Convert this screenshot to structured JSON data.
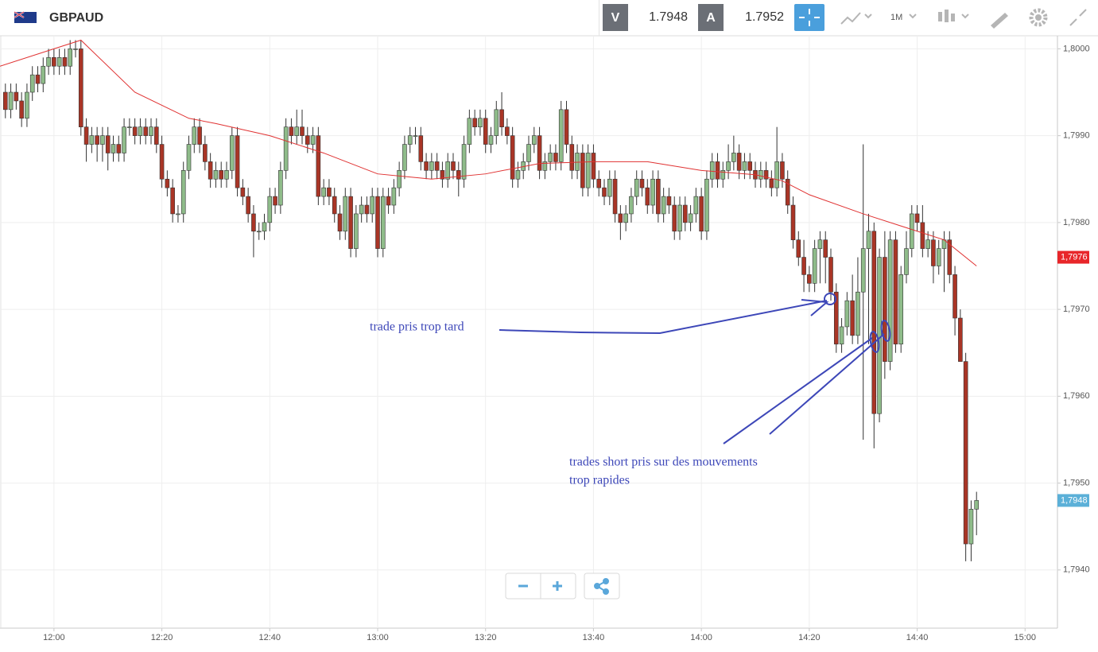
{
  "header": {
    "symbol": "GBPAUD",
    "bid_label": "V",
    "bid": "1.7948",
    "ask_label": "A",
    "ask": "1.7952",
    "timeframe": "1M"
  },
  "chart_data": {
    "type": "candlestick",
    "x": [
      "11:51",
      "11:52",
      "11:53",
      "11:54",
      "11:55",
      "11:56",
      "11:57",
      "11:58",
      "11:59",
      "12:00",
      "12:01",
      "12:02",
      "12:03",
      "12:04",
      "12:05",
      "12:06",
      "12:07",
      "12:08",
      "12:09",
      "12:10",
      "12:11",
      "12:12",
      "12:13",
      "12:14",
      "12:15",
      "12:16",
      "12:17",
      "12:18",
      "12:19",
      "12:20",
      "12:21",
      "12:22",
      "12:23",
      "12:24",
      "12:25",
      "12:26",
      "12:27",
      "12:28",
      "12:29",
      "12:30",
      "12:31",
      "12:32",
      "12:33",
      "12:34",
      "12:35",
      "12:36",
      "12:37",
      "12:38",
      "12:39",
      "12:40",
      "12:41",
      "12:42",
      "12:43",
      "12:44",
      "12:45",
      "12:46",
      "12:47",
      "12:48",
      "12:49",
      "12:50",
      "12:51",
      "12:52",
      "12:53",
      "12:54",
      "12:55",
      "12:56",
      "12:57",
      "12:58",
      "12:59",
      "13:00",
      "13:01",
      "13:02",
      "13:03",
      "13:04",
      "13:05",
      "13:06",
      "13:07",
      "13:08",
      "13:09",
      "13:10",
      "13:11",
      "13:12",
      "13:13",
      "13:14",
      "13:15",
      "13:16",
      "13:17",
      "13:18",
      "13:19",
      "13:20",
      "13:21",
      "13:22",
      "13:23",
      "13:24",
      "13:25",
      "13:26",
      "13:27",
      "13:28",
      "13:29",
      "13:30",
      "13:31",
      "13:32",
      "13:33",
      "13:34",
      "13:35",
      "13:36",
      "13:37",
      "13:38",
      "13:39",
      "13:40",
      "13:41",
      "13:42",
      "13:43",
      "13:44",
      "13:45",
      "13:46",
      "13:47",
      "13:48",
      "13:49",
      "13:50",
      "13:51",
      "13:52",
      "13:53",
      "13:54",
      "13:55",
      "13:56",
      "13:57",
      "13:58",
      "13:59",
      "14:00",
      "14:01",
      "14:02",
      "14:03",
      "14:04",
      "14:05",
      "14:06",
      "14:07",
      "14:08",
      "14:09",
      "14:10",
      "14:11",
      "14:12",
      "14:13",
      "14:14",
      "14:15",
      "14:16",
      "14:17",
      "14:18",
      "14:19",
      "14:20",
      "14:21",
      "14:22",
      "14:23",
      "14:24",
      "14:25",
      "14:26",
      "14:27",
      "14:28",
      "14:29",
      "14:30",
      "14:31",
      "14:32",
      "14:33",
      "14:34",
      "14:35",
      "14:36",
      "14:37",
      "14:38",
      "14:39",
      "14:40",
      "14:41",
      "14:42",
      "14:43",
      "14:44",
      "14:45",
      "14:46",
      "14:47",
      "14:48",
      "14:49",
      "14:50",
      "14:51"
    ],
    "open": [
      1.7995,
      1.7993,
      1.7995,
      1.7994,
      1.7992,
      1.7995,
      1.7997,
      1.7996,
      1.7998,
      1.7999,
      1.7998,
      1.7999,
      1.7998,
      1.8,
      1.8,
      1.7991,
      1.7989,
      1.799,
      1.7989,
      1.799,
      1.7988,
      1.7989,
      1.7988,
      1.7991,
      1.7991,
      1.799,
      1.7991,
      1.799,
      1.7991,
      1.7989,
      1.7985,
      1.7984,
      1.7981,
      1.7981,
      1.7986,
      1.7989,
      1.7991,
      1.7989,
      1.7987,
      1.7985,
      1.7986,
      1.7985,
      1.7986,
      1.799,
      1.7984,
      1.7983,
      1.7981,
      1.7979,
      1.7979,
      1.798,
      1.7983,
      1.7982,
      1.7986,
      1.7991,
      1.799,
      1.7991,
      1.799,
      1.7989,
      1.799,
      1.7983,
      1.7984,
      1.7983,
      1.7981,
      1.7979,
      1.7983,
      1.7977,
      1.7981,
      1.7982,
      1.7981,
      1.7983,
      1.7977,
      1.7983,
      1.7982,
      1.7984,
      1.7986,
      1.7989,
      1.799,
      1.799,
      1.7987,
      1.7986,
      1.7987,
      1.7986,
      1.7985,
      1.7987,
      1.7986,
      1.7985,
      1.7989,
      1.7992,
      1.7991,
      1.7992,
      1.7989,
      1.799,
      1.7993,
      1.7991,
      1.799,
      1.7985,
      1.7986,
      1.7987,
      1.7989,
      1.799,
      1.7986,
      1.7987,
      1.7988,
      1.7987,
      1.7993,
      1.7989,
      1.7986,
      1.7988,
      1.7984,
      1.7988,
      1.7985,
      1.7984,
      1.7983,
      1.7985,
      1.7981,
      1.798,
      1.7981,
      1.7983,
      1.7985,
      1.7984,
      1.7982,
      1.7985,
      1.7981,
      1.7983,
      1.7982,
      1.7979,
      1.7982,
      1.798,
      1.7981,
      1.7983,
      1.7979,
      1.7985,
      1.7987,
      1.7985,
      1.7986,
      1.7987,
      1.7988,
      1.7986,
      1.7987,
      1.7986,
      1.7985,
      1.7986,
      1.7985,
      1.7984,
      1.7987,
      1.7985,
      1.7982,
      1.7978,
      1.7976,
      1.7974,
      1.7973,
      1.7977,
      1.7978,
      1.7976,
      1.7972,
      1.7966,
      1.7968,
      1.7971,
      1.7967,
      1.7972,
      1.7977,
      1.7979,
      1.7958,
      1.7976,
      1.7964,
      1.7978,
      1.7966,
      1.7974,
      1.7977,
      1.7981,
      1.798,
      1.7977,
      1.7978,
      1.7975,
      1.7977,
      1.7978,
      1.7974,
      1.7969,
      1.7964,
      1.7943,
      1.7947
    ],
    "high": [
      1.7996,
      1.7996,
      1.7996,
      1.7995,
      1.7996,
      1.7998,
      1.7998,
      1.7999,
      1.8,
      1.8,
      1.8,
      1.8,
      1.8001,
      1.8001,
      1.8001,
      1.7992,
      1.7991,
      1.7991,
      1.7991,
      1.7991,
      1.799,
      1.799,
      1.7992,
      1.7992,
      1.7992,
      1.7992,
      1.7992,
      1.7992,
      1.7992,
      1.799,
      1.7986,
      1.7985,
      1.7982,
      1.7987,
      1.799,
      1.7992,
      1.7992,
      1.799,
      1.7988,
      1.7987,
      1.7987,
      1.7987,
      1.7991,
      1.7991,
      1.7985,
      1.7984,
      1.7982,
      1.798,
      1.7981,
      1.7984,
      1.7984,
      1.7987,
      1.7992,
      1.7992,
      1.7993,
      1.7993,
      1.7991,
      1.7991,
      1.7991,
      1.7985,
      1.7985,
      1.7984,
      1.7982,
      1.7984,
      1.7984,
      1.7982,
      1.7983,
      1.7983,
      1.7984,
      1.7984,
      1.7984,
      1.7984,
      1.7985,
      1.7987,
      1.799,
      1.7991,
      1.7991,
      1.7991,
      1.7988,
      1.7988,
      1.7988,
      1.7987,
      1.7988,
      1.7988,
      1.7987,
      1.799,
      1.7993,
      1.7993,
      1.7993,
      1.7993,
      1.7991,
      1.7994,
      1.7995,
      1.7992,
      1.7991,
      1.7987,
      1.7988,
      1.799,
      1.7991,
      1.7991,
      1.7988,
      1.7989,
      1.7989,
      1.7994,
      1.7994,
      1.799,
      1.7989,
      1.7989,
      1.7989,
      1.7989,
      1.7986,
      1.7985,
      1.7986,
      1.7986,
      1.7982,
      1.7982,
      1.7984,
      1.7986,
      1.7986,
      1.7985,
      1.7986,
      1.7986,
      1.7984,
      1.7984,
      1.7983,
      1.7983,
      1.7983,
      1.7982,
      1.7984,
      1.7984,
      1.7986,
      1.7988,
      1.7988,
      1.7987,
      1.7989,
      1.799,
      1.7989,
      1.7988,
      1.7988,
      1.7987,
      1.7987,
      1.7987,
      1.7986,
      1.7991,
      1.7988,
      1.7986,
      1.7983,
      1.7979,
      1.7978,
      1.7975,
      1.7978,
      1.7979,
      1.7979,
      1.7977,
      1.7973,
      1.7969,
      1.7972,
      1.7974,
      1.7976,
      1.7989,
      1.7981,
      1.798,
      1.7977,
      1.7979,
      1.7979,
      1.7979,
      1.7975,
      1.7979,
      1.7982,
      1.7982,
      1.7982,
      1.7979,
      1.7979,
      1.7978,
      1.7979,
      1.7979,
      1.7975,
      1.797,
      1.7965,
      1.7948,
      1.7949
    ],
    "low": [
      1.7992,
      1.7992,
      1.7993,
      1.7991,
      1.7991,
      1.7994,
      1.7995,
      1.7995,
      1.7997,
      1.7997,
      1.7997,
      1.7997,
      1.7997,
      1.7999,
      1.799,
      1.7987,
      1.7988,
      1.7987,
      1.7987,
      1.7986,
      1.7987,
      1.7987,
      1.7987,
      1.799,
      1.7989,
      1.7989,
      1.7989,
      1.7989,
      1.7988,
      1.7984,
      1.7983,
      1.798,
      1.798,
      1.798,
      1.7985,
      1.7988,
      1.7988,
      1.7986,
      1.7984,
      1.7984,
      1.7984,
      1.7984,
      1.7985,
      1.7983,
      1.7982,
      1.798,
      1.7976,
      1.7978,
      1.7978,
      1.7979,
      1.7981,
      1.7981,
      1.7985,
      1.7989,
      1.7989,
      1.7989,
      1.7988,
      1.7988,
      1.7982,
      1.7982,
      1.7982,
      1.798,
      1.7978,
      1.7978,
      1.7976,
      1.7976,
      1.798,
      1.798,
      1.798,
      1.7976,
      1.7976,
      1.7981,
      1.7981,
      1.7983,
      1.7985,
      1.7988,
      1.7989,
      1.7986,
      1.7985,
      1.7985,
      1.7985,
      1.7984,
      1.7984,
      1.7985,
      1.7983,
      1.7984,
      1.7988,
      1.799,
      1.799,
      1.7988,
      1.7988,
      1.7989,
      1.799,
      1.7989,
      1.7984,
      1.7984,
      1.7985,
      1.7986,
      1.7988,
      1.7985,
      1.7985,
      1.7986,
      1.7986,
      1.7986,
      1.7988,
      1.7985,
      1.7985,
      1.7983,
      1.7983,
      1.7984,
      1.7983,
      1.7982,
      1.7982,
      1.798,
      1.7978,
      1.7979,
      1.798,
      1.7982,
      1.7983,
      1.7981,
      1.7981,
      1.798,
      1.798,
      1.7981,
      1.7978,
      1.7978,
      1.7979,
      1.7979,
      1.798,
      1.7978,
      1.7978,
      1.7984,
      1.7984,
      1.7984,
      1.7985,
      1.7986,
      1.7985,
      1.7985,
      1.7985,
      1.7984,
      1.7984,
      1.7984,
      1.7983,
      1.7983,
      1.7984,
      1.7981,
      1.7977,
      1.7975,
      1.7972,
      1.7972,
      1.7972,
      1.7973,
      1.7973,
      1.7971,
      1.7965,
      1.7965,
      1.7967,
      1.7966,
      1.7966,
      1.7955,
      1.7966,
      1.7954,
      1.7957,
      1.7962,
      1.7963,
      1.7965,
      1.7965,
      1.7973,
      1.7976,
      1.7979,
      1.7976,
      1.7976,
      1.7973,
      1.7974,
      1.7972,
      1.7973,
      1.7967,
      1.7964,
      1.7941,
      1.7941,
      1.7944
    ],
    "close": [
      1.7993,
      1.7995,
      1.7994,
      1.7992,
      1.7995,
      1.7997,
      1.7996,
      1.7998,
      1.7999,
      1.7998,
      1.7999,
      1.7998,
      1.8,
      1.8,
      1.7991,
      1.7989,
      1.799,
      1.7989,
      1.799,
      1.7988,
      1.7989,
      1.7988,
      1.7991,
      1.7991,
      1.799,
      1.7991,
      1.799,
      1.7991,
      1.7989,
      1.7985,
      1.7984,
      1.7981,
      1.7981,
      1.7986,
      1.7989,
      1.7991,
      1.7989,
      1.7987,
      1.7985,
      1.7986,
      1.7985,
      1.7986,
      1.799,
      1.7984,
      1.7983,
      1.7981,
      1.7979,
      1.7979,
      1.798,
      1.7983,
      1.7982,
      1.7986,
      1.7991,
      1.799,
      1.7991,
      1.799,
      1.7989,
      1.799,
      1.7983,
      1.7984,
      1.7983,
      1.7981,
      1.7979,
      1.7983,
      1.7977,
      1.7981,
      1.7982,
      1.7981,
      1.7983,
      1.7977,
      1.7983,
      1.7982,
      1.7984,
      1.7986,
      1.7989,
      1.799,
      1.799,
      1.7987,
      1.7986,
      1.7987,
      1.7986,
      1.7985,
      1.7987,
      1.7986,
      1.7985,
      1.7989,
      1.7992,
      1.7991,
      1.7992,
      1.7989,
      1.799,
      1.7993,
      1.7991,
      1.799,
      1.7985,
      1.7986,
      1.7987,
      1.7989,
      1.799,
      1.7986,
      1.7987,
      1.7988,
      1.7987,
      1.7993,
      1.7989,
      1.7986,
      1.7988,
      1.7984,
      1.7988,
      1.7985,
      1.7984,
      1.7983,
      1.7985,
      1.7981,
      1.798,
      1.7981,
      1.7983,
      1.7985,
      1.7984,
      1.7982,
      1.7985,
      1.7981,
      1.7983,
      1.7982,
      1.7979,
      1.7982,
      1.798,
      1.7981,
      1.7983,
      1.7979,
      1.7985,
      1.7987,
      1.7985,
      1.7986,
      1.7987,
      1.7988,
      1.7986,
      1.7987,
      1.7986,
      1.7985,
      1.7986,
      1.7985,
      1.7984,
      1.7987,
      1.7985,
      1.7982,
      1.7978,
      1.7976,
      1.7974,
      1.7973,
      1.7977,
      1.7978,
      1.7976,
      1.7972,
      1.7966,
      1.7968,
      1.7971,
      1.7967,
      1.7972,
      1.7977,
      1.7979,
      1.7958,
      1.7976,
      1.7964,
      1.7978,
      1.7966,
      1.7974,
      1.7977,
      1.7981,
      1.798,
      1.7977,
      1.7978,
      1.7975,
      1.7977,
      1.7978,
      1.7974,
      1.7969,
      1.7964,
      1.7943,
      1.7947,
      1.7948
    ],
    "up_color": "#8fbc8a",
    "down_color": "#a93526",
    "ma_x": [
      "11:50",
      "12:00",
      "12:05",
      "12:15",
      "12:25",
      "12:30",
      "12:40",
      "12:50",
      "13:00",
      "13:10",
      "13:20",
      "13:30",
      "13:40",
      "13:50",
      "14:00",
      "14:10",
      "14:15",
      "14:20",
      "14:30",
      "14:40",
      "14:45",
      "14:51"
    ],
    "ma_values": [
      1.7998,
      1.8,
      1.8001,
      1.7995,
      1.7992,
      1.79914,
      1.799,
      1.7988,
      1.79856,
      1.7985,
      1.79856,
      1.79868,
      1.7987,
      1.7987,
      1.7986,
      1.79855,
      1.79848,
      1.79832,
      1.7981,
      1.7979,
      1.7978,
      1.7975
    ],
    "ma_color": "#e03232",
    "xlim": [
      "11:50",
      "15:06"
    ],
    "xticks": [
      "12:00",
      "12:20",
      "12:40",
      "13:00",
      "13:20",
      "13:40",
      "14:00",
      "14:20",
      "14:40",
      "15:00"
    ],
    "ylim": [
      1.79333,
      1.80015
    ],
    "yticks": [
      {
        "value": 1.8,
        "label": "1,8000"
      },
      {
        "value": 1.799,
        "label": "1,7990"
      },
      {
        "value": 1.798,
        "label": "1,7980"
      },
      {
        "value": 1.797,
        "label": "1,7970"
      },
      {
        "value": 1.796,
        "label": "1,7960"
      },
      {
        "value": 1.795,
        "label": "1,7950"
      },
      {
        "value": 1.794,
        "label": "1,7940"
      }
    ],
    "grid": true,
    "price_markers": [
      {
        "value": 1.7976,
        "label": "1,7976",
        "color": "#e8262a"
      },
      {
        "value": 1.7948,
        "label": "1,7948",
        "color": "#5bb0d8"
      }
    ],
    "annotations": [
      "trade pris trop tard",
      "trades short pris sur des mouvements",
      "trop rapides"
    ]
  }
}
